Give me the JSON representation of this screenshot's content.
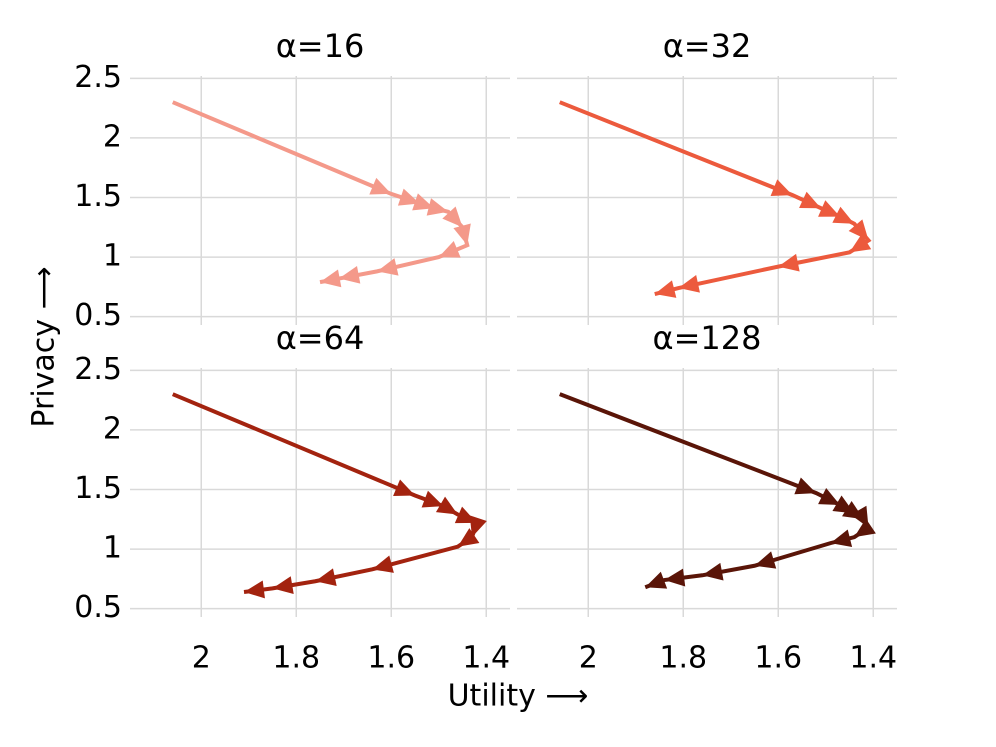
{
  "figure": {
    "xlabel": "Utility ⟶",
    "ylabel": "Privacy ⟶"
  },
  "chart_data": [
    {
      "type": "line",
      "title": "α=16",
      "color": "#f4998a",
      "x": [
        2.06,
        1.6,
        1.54,
        1.51,
        1.48,
        1.45,
        1.44,
        1.5,
        1.63,
        1.71,
        1.75
      ],
      "values": [
        2.3,
        1.53,
        1.45,
        1.41,
        1.38,
        1.25,
        1.1,
        1.0,
        0.88,
        0.82,
        0.79
      ],
      "xlim": [
        2.15,
        1.35
      ],
      "ylim": [
        0.43,
        2.57
      ],
      "xticks": [
        2,
        1.8,
        1.6,
        1.4
      ],
      "yticks": [
        0.5,
        1,
        1.5,
        2,
        2.5
      ],
      "grid": true
    },
    {
      "type": "line",
      "title": "α=32",
      "color": "#ec5a3d",
      "x": [
        2.06,
        1.57,
        1.51,
        1.47,
        1.44,
        1.41,
        1.45,
        1.6,
        1.81,
        1.86
      ],
      "values": [
        2.3,
        1.52,
        1.41,
        1.34,
        1.28,
        1.14,
        1.04,
        0.92,
        0.74,
        0.69
      ],
      "xlim": [
        2.15,
        1.35
      ],
      "ylim": [
        0.43,
        2.57
      ],
      "xticks": [
        2,
        1.8,
        1.6,
        1.4
      ],
      "yticks": [
        0.5,
        1,
        1.5,
        2,
        2.5
      ],
      "grid": true
    },
    {
      "type": "line",
      "title": "α=64",
      "color": "#a3230f",
      "x": [
        2.06,
        1.55,
        1.49,
        1.46,
        1.42,
        1.43,
        1.46,
        1.64,
        1.76,
        1.85,
        1.91
      ],
      "values": [
        2.3,
        1.45,
        1.36,
        1.29,
        1.22,
        1.1,
        1.02,
        0.83,
        0.73,
        0.67,
        0.64
      ],
      "xlim": [
        2.15,
        1.35
      ],
      "ylim": [
        0.43,
        2.57
      ],
      "xticks": [
        2,
        1.8,
        1.6,
        1.4
      ],
      "yticks": [
        0.5,
        1,
        1.5,
        2,
        2.5
      ],
      "grid": true
    },
    {
      "type": "line",
      "title": "α=128",
      "color": "#5a1508",
      "x": [
        2.06,
        1.52,
        1.47,
        1.44,
        1.42,
        1.41,
        1.44,
        1.49,
        1.65,
        1.76,
        1.84,
        1.88
      ],
      "values": [
        2.3,
        1.47,
        1.37,
        1.3,
        1.25,
        1.18,
        1.1,
        1.05,
        0.86,
        0.78,
        0.74,
        0.68
      ],
      "xlim": [
        2.15,
        1.35
      ],
      "ylim": [
        0.43,
        2.57
      ],
      "xticks": [
        2,
        1.8,
        1.6,
        1.4
      ],
      "yticks": [
        0.5,
        1,
        1.5,
        2,
        2.5
      ],
      "grid": true
    }
  ]
}
